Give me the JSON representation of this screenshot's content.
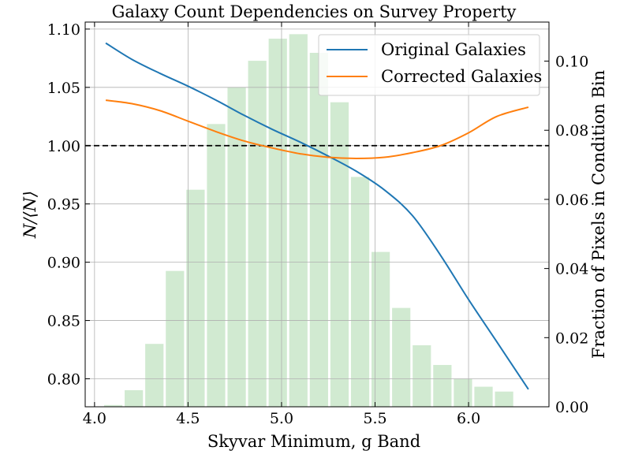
{
  "chart_data": {
    "type": "line+bar",
    "title": "Galaxy Count Dependencies on Survey Property",
    "xlabel": "Skyvar Minimum, g Band",
    "ylabel": "N/⟨N⟩",
    "y2label": "Fraction of Pixels in Condition Bin",
    "xlim": [
      3.95,
      6.43
    ],
    "ylim": [
      0.776,
      1.106
    ],
    "y2lim": [
      0.0,
      0.1113
    ],
    "x_ticks": [
      "4.0",
      "4.5",
      "5.0",
      "5.5",
      "6.0"
    ],
    "y_ticks": [
      "0.80",
      "0.85",
      "0.90",
      "0.95",
      "1.00",
      "1.05",
      "1.10"
    ],
    "y2_ticks": [
      "0.00",
      "0.02",
      "0.04",
      "0.06",
      "0.08",
      "0.10"
    ],
    "grid": true,
    "reference_line": {
      "y": 1.0,
      "style": "dashed",
      "color": "#000000"
    },
    "histogram": {
      "color": "#2ca02c",
      "alpha": 0.22,
      "bin_width": 0.108,
      "centers": [
        4.1,
        4.21,
        4.32,
        4.43,
        4.54,
        4.65,
        4.76,
        4.87,
        4.98,
        5.09,
        5.2,
        5.31,
        5.42,
        5.53,
        5.64,
        5.75,
        5.86,
        5.97,
        6.08,
        6.19,
        6.3
      ],
      "values": [
        0.0005,
        0.0048,
        0.0182,
        0.0393,
        0.0628,
        0.0818,
        0.0924,
        0.1001,
        0.1065,
        0.1078,
        0.1024,
        0.0881,
        0.0665,
        0.0448,
        0.0286,
        0.0178,
        0.0121,
        0.0081,
        0.0058,
        0.0044,
        0.0
      ]
    },
    "series": [
      {
        "name": "Original Galaxies",
        "color": "#1f77b4",
        "x": [
          4.06,
          4.2,
          4.35,
          4.5,
          4.65,
          4.8,
          4.95,
          5.1,
          5.25,
          5.4,
          5.55,
          5.7,
          5.85,
          6.0,
          6.15,
          6.32
        ],
        "y": [
          1.088,
          1.074,
          1.062,
          1.051,
          1.039,
          1.026,
          1.014,
          1.003,
          0.991,
          0.978,
          0.962,
          0.94,
          0.906,
          0.868,
          0.832,
          0.791
        ]
      },
      {
        "name": "Corrected Galaxies",
        "color": "#ff7f0e",
        "x": [
          4.06,
          4.2,
          4.35,
          4.5,
          4.65,
          4.8,
          4.95,
          5.1,
          5.25,
          5.4,
          5.55,
          5.7,
          5.85,
          6.0,
          6.15,
          6.32
        ],
        "y": [
          1.039,
          1.036,
          1.03,
          1.021,
          1.012,
          1.004,
          0.998,
          0.993,
          0.99,
          0.989,
          0.99,
          0.994,
          1.0,
          1.011,
          1.025,
          1.033
        ]
      }
    ],
    "legend_position": "top-right"
  }
}
